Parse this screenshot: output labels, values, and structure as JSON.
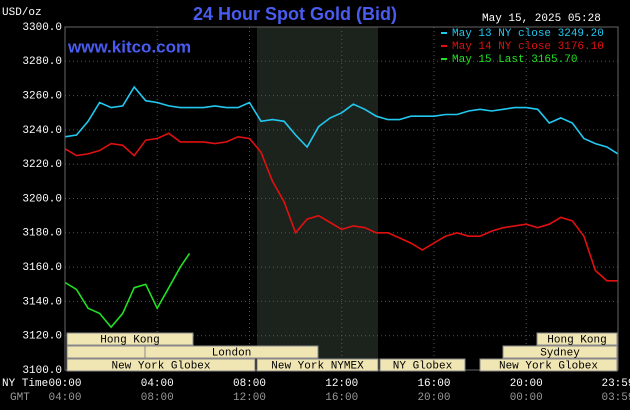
{
  "chart_data": {
    "type": "line",
    "title": "24 Hour Spot Gold (Bid)",
    "timestamp": "May 15, 2025 05:28",
    "watermark": "www.kitco.com",
    "y_label": "USD/oz",
    "x_label_ny": "NY Time",
    "x_label_gmt": "GMT",
    "xlim": [
      0,
      23.98
    ],
    "xticks": [
      {
        "value": 0,
        "label": "00:00"
      },
      {
        "value": 4,
        "label": "04:00"
      },
      {
        "value": 8,
        "label": "08:00"
      },
      {
        "value": 12,
        "label": "12:00"
      },
      {
        "value": 16,
        "label": "16:00"
      },
      {
        "value": 20,
        "label": "20:00"
      },
      {
        "value": 23.98,
        "label": "23:59"
      }
    ],
    "xticks_gmt": [
      "04:00",
      "08:00",
      "12:00",
      "16:00",
      "20:00",
      "00:00",
      "03:59"
    ],
    "ylim": [
      3100,
      3300
    ],
    "yticks": [
      {
        "value": 3100,
        "label": "3100.0"
      },
      {
        "value": 3120,
        "label": "3120.0"
      },
      {
        "value": 3140,
        "label": "3140.0"
      },
      {
        "value": 3160,
        "label": "3160.0"
      },
      {
        "value": 3180,
        "label": "3180.0"
      },
      {
        "value": 3200,
        "label": "3200.0"
      },
      {
        "value": 3220,
        "label": "3220.0"
      },
      {
        "value": 3240,
        "label": "3240.0"
      },
      {
        "value": 3260,
        "label": "3260.0"
      },
      {
        "value": 3280,
        "label": "3280.0"
      },
      {
        "value": 3300,
        "label": "3300.0"
      }
    ],
    "grid": true,
    "sessions": [
      "Hong Kong",
      "London",
      "New York Globex",
      "New York NYMEX",
      "NY Globex",
      "Hong Kong",
      "Sydney",
      "New York Globex"
    ],
    "series": [
      {
        "name": "May 13 NY close 3249.20",
        "color": "#22c8f0",
        "x": [
          0,
          0.5,
          1,
          1.5,
          2,
          2.5,
          3,
          3.5,
          4,
          4.5,
          5,
          5.5,
          6,
          6.5,
          7,
          7.5,
          8,
          8.5,
          9,
          9.5,
          10,
          10.5,
          11,
          11.5,
          12,
          12.5,
          13,
          13.5,
          14,
          14.5,
          15,
          15.5,
          16,
          16.5,
          17,
          17.5,
          18,
          18.5,
          19,
          19.5,
          20,
          20.5,
          21,
          21.5,
          22,
          22.5,
          23,
          23.5,
          23.98
        ],
        "values": [
          3236,
          3237,
          3245,
          3256,
          3253,
          3254,
          3265,
          3257,
          3256,
          3254,
          3253,
          3253,
          3253,
          3254,
          3253,
          3253,
          3256,
          3245,
          3246,
          3245,
          3237,
          3230,
          3242,
          3247,
          3250,
          3255,
          3252,
          3248,
          3246,
          3246,
          3248,
          3248,
          3248,
          3249,
          3249,
          3251,
          3252,
          3251,
          3252,
          3253,
          3253,
          3252,
          3244,
          3247,
          3244,
          3235,
          3232,
          3230,
          3226
        ]
      },
      {
        "name": "May 14 NY close 3176.10",
        "color": "#e01010",
        "x": [
          0,
          0.5,
          1,
          1.5,
          2,
          2.5,
          3,
          3.5,
          4,
          4.5,
          5,
          5.5,
          6,
          6.5,
          7,
          7.5,
          8,
          8.5,
          9,
          9.5,
          10,
          10.5,
          11,
          11.5,
          12,
          12.5,
          13,
          13.5,
          14,
          14.5,
          15,
          15.5,
          16,
          16.5,
          17,
          17.5,
          18,
          18.5,
          19,
          19.5,
          20,
          20.5,
          21,
          21.5,
          22,
          22.5,
          23,
          23.5,
          23.98
        ],
        "values": [
          3229,
          3225,
          3226,
          3228,
          3232,
          3231,
          3225,
          3234,
          3235,
          3238,
          3233,
          3233,
          3233,
          3232,
          3233,
          3236,
          3235,
          3227,
          3210,
          3198,
          3180,
          3188,
          3190,
          3186,
          3182,
          3184,
          3183,
          3180,
          3180,
          3177,
          3174,
          3170,
          3174,
          3178,
          3180,
          3178,
          3178,
          3181,
          3183,
          3184,
          3185,
          3183,
          3185,
          3189,
          3187,
          3178,
          3158,
          3152,
          3152
        ]
      },
      {
        "name": "May 15 Last 3165.70",
        "color": "#22e022",
        "x": [
          0,
          0.5,
          1,
          1.5,
          2,
          2.5,
          3,
          3.5,
          4,
          4.5,
          5,
          5.4
        ],
        "values": [
          3151,
          3147,
          3136,
          3133,
          3125,
          3133,
          3148,
          3150,
          3136,
          3148,
          3160,
          3168
        ]
      }
    ]
  }
}
